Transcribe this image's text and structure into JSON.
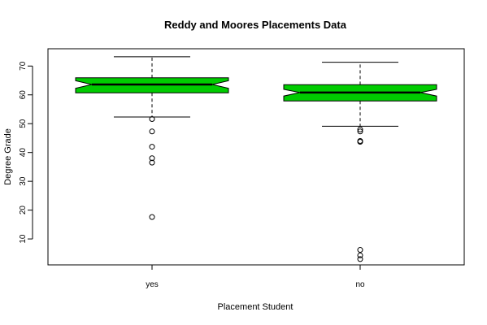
{
  "chart_data": {
    "type": "boxplot",
    "title": "Reddy and Moores Placements Data",
    "xlabel": "Placement Student",
    "ylabel": "Degree Grade",
    "ylim": [
      1,
      76
    ],
    "yticks": [
      10,
      20,
      30,
      40,
      50,
      60,
      70
    ],
    "notched": true,
    "fill_color": "#00cc00",
    "grid": false,
    "series": [
      {
        "category": "yes",
        "whisker_low": 52.3,
        "q1": 60.7,
        "median": 63.6,
        "q3": 65.9,
        "whisker_high": 73.2,
        "notch_low": 62.3,
        "notch_high": 64.9,
        "outliers": [
          51.6,
          47.3,
          42.0,
          38.0,
          36.5,
          17.6
        ]
      },
      {
        "category": "no",
        "whisker_low": 49.1,
        "q1": 57.9,
        "median": 60.8,
        "q3": 63.5,
        "whisker_high": 71.3,
        "notch_low": 59.6,
        "notch_high": 61.9,
        "outliers": [
          48.0,
          47.3,
          44.0,
          43.7,
          6.2,
          4.3,
          3.0
        ]
      }
    ]
  }
}
